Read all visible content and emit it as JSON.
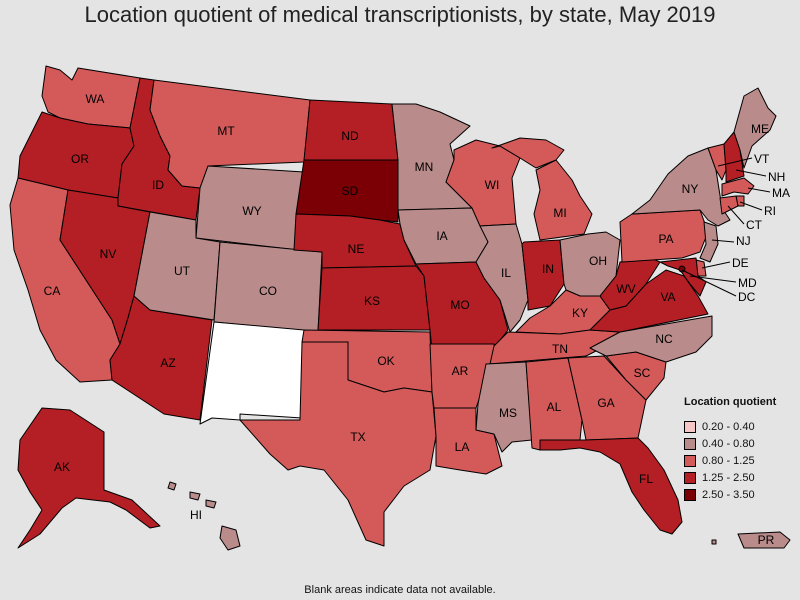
{
  "title": "Location quotient of medical transcriptionists, by state, May 2019",
  "footnote": "Blank areas indicate data not available.",
  "legend": {
    "title": "Location quotient",
    "bins": [
      {
        "label": "0.20 - 0.40",
        "color": "#f7c6c6"
      },
      {
        "label": "0.40 - 0.80",
        "color": "#b98b8b"
      },
      {
        "label": "0.80 - 1.25",
        "color": "#d45a5a"
      },
      {
        "label": "1.25 - 2.50",
        "color": "#b31f24"
      },
      {
        "label": "2.50 - 3.50",
        "color": "#7a0006"
      }
    ]
  },
  "nodata_color": "#ffffff",
  "states": {
    "WA": {
      "label": "WA",
      "bin": 2
    },
    "OR": {
      "label": "OR",
      "bin": 3
    },
    "CA": {
      "label": "CA",
      "bin": 2
    },
    "ID": {
      "label": "ID",
      "bin": 3
    },
    "NV": {
      "label": "NV",
      "bin": 3
    },
    "AZ": {
      "label": "AZ",
      "bin": 3
    },
    "MT": {
      "label": "MT",
      "bin": 2
    },
    "WY": {
      "label": "WY",
      "bin": 1
    },
    "UT": {
      "label": "UT",
      "bin": 1
    },
    "CO": {
      "label": "CO",
      "bin": 1
    },
    "NM": {
      "label": "",
      "bin": -1
    },
    "ND": {
      "label": "ND",
      "bin": 3
    },
    "SD": {
      "label": "SD",
      "bin": 4
    },
    "NE": {
      "label": "NE",
      "bin": 3
    },
    "KS": {
      "label": "KS",
      "bin": 3
    },
    "OK": {
      "label": "OK",
      "bin": 2
    },
    "TX": {
      "label": "TX",
      "bin": 2
    },
    "MN": {
      "label": "MN",
      "bin": 1
    },
    "IA": {
      "label": "IA",
      "bin": 1
    },
    "MO": {
      "label": "MO",
      "bin": 3
    },
    "AR": {
      "label": "AR",
      "bin": 2
    },
    "LA": {
      "label": "LA",
      "bin": 2
    },
    "WI": {
      "label": "WI",
      "bin": 2
    },
    "IL": {
      "label": "IL",
      "bin": 1
    },
    "MI": {
      "label": "MI",
      "bin": 2
    },
    "IN": {
      "label": "IN",
      "bin": 3
    },
    "OH": {
      "label": "OH",
      "bin": 1
    },
    "KY": {
      "label": "KY",
      "bin": 2
    },
    "TN": {
      "label": "TN",
      "bin": 2
    },
    "MS": {
      "label": "MS",
      "bin": 1
    },
    "AL": {
      "label": "AL",
      "bin": 2
    },
    "GA": {
      "label": "GA",
      "bin": 2
    },
    "FL": {
      "label": "FL",
      "bin": 3
    },
    "SC": {
      "label": "SC",
      "bin": 2
    },
    "NC": {
      "label": "NC",
      "bin": 1
    },
    "VA": {
      "label": "VA",
      "bin": 3
    },
    "WV": {
      "label": "WV",
      "bin": 3
    },
    "PA": {
      "label": "PA",
      "bin": 2
    },
    "NY": {
      "label": "NY",
      "bin": 1
    },
    "ME": {
      "label": "ME",
      "bin": 1
    },
    "VT": {
      "label": "VT",
      "bin": 2
    },
    "NH": {
      "label": "NH",
      "bin": 3
    },
    "MA": {
      "label": "MA",
      "bin": 2
    },
    "RI": {
      "label": "RI",
      "bin": 2
    },
    "CT": {
      "label": "CT",
      "bin": 2
    },
    "NJ": {
      "label": "NJ",
      "bin": 1
    },
    "DE": {
      "label": "DE",
      "bin": 2
    },
    "MD": {
      "label": "MD",
      "bin": 3
    },
    "DC": {
      "label": "DC",
      "bin": 4
    },
    "AK": {
      "label": "AK",
      "bin": 3
    },
    "HI": {
      "label": "HI",
      "bin": 1
    },
    "PR": {
      "label": "PR",
      "bin": 1
    }
  }
}
